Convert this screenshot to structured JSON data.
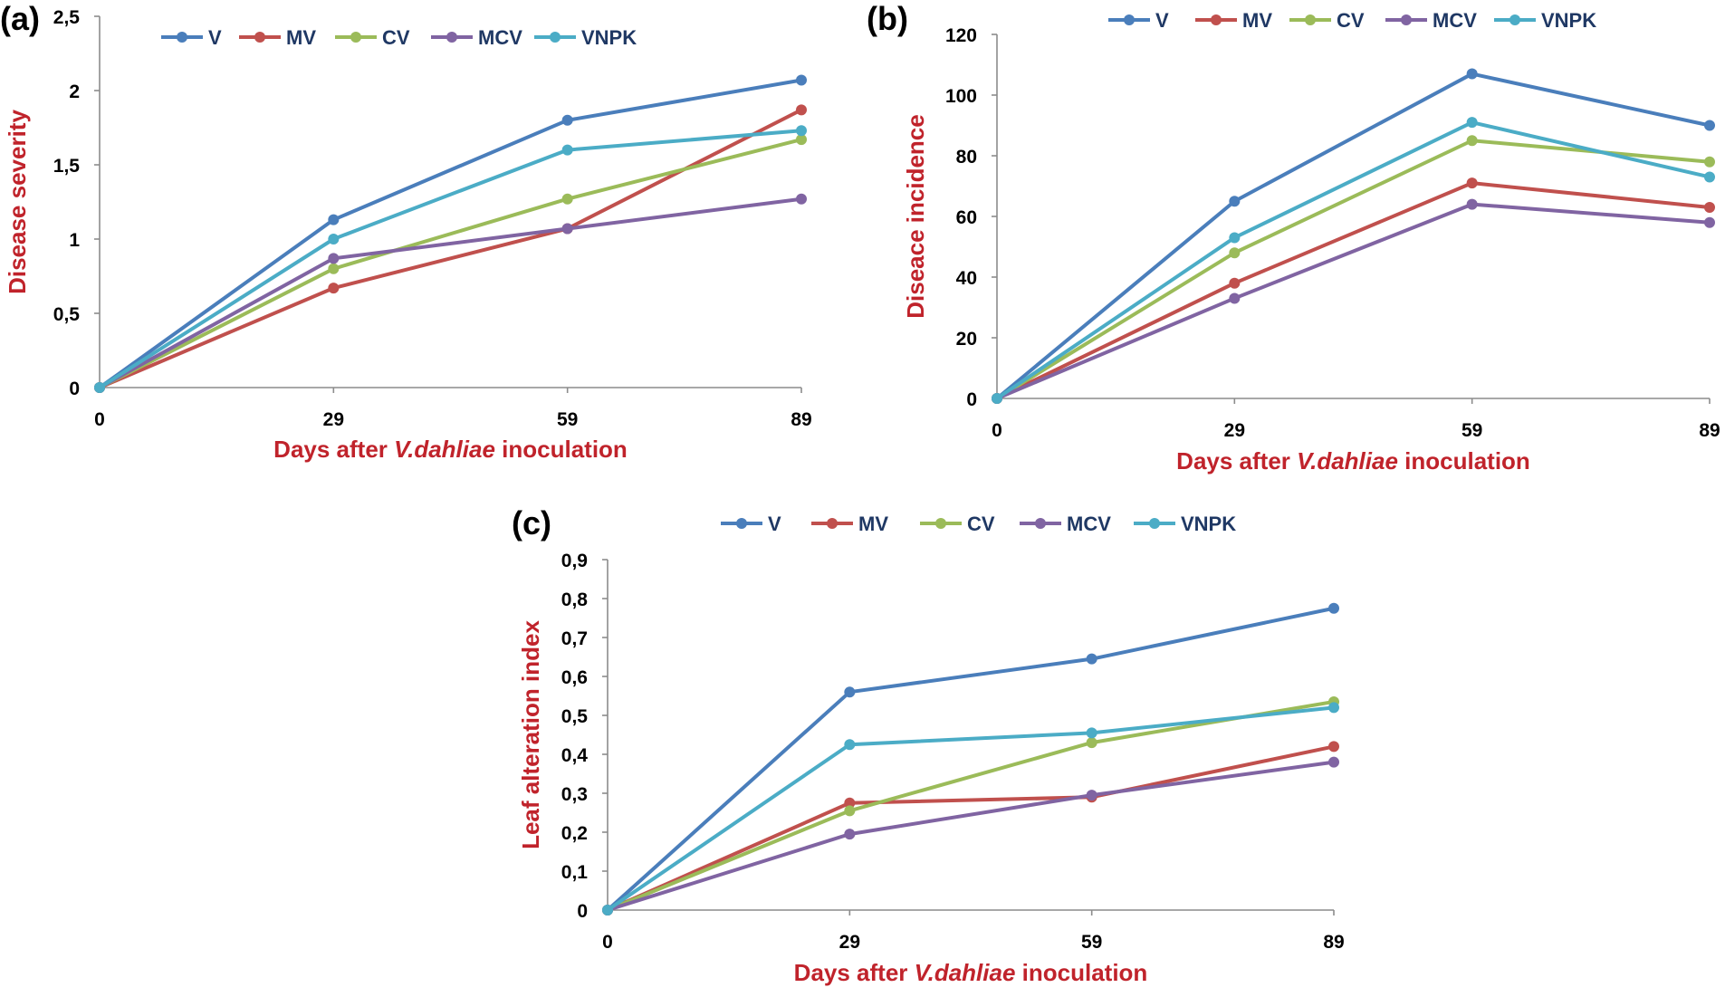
{
  "chart_data": [
    {
      "type": "line",
      "panel_label": "(a)",
      "categories": [
        "0",
        "29",
        "59",
        "89"
      ],
      "ylabel": "Disease severity",
      "xlabel": {
        "before": "Days after ",
        "italic": "V.dahliae",
        "after": " inoculation"
      },
      "ylim": [
        0,
        2.5
      ],
      "yticks": [
        "0",
        "0,5",
        "1",
        "1,5",
        "2",
        "2,5"
      ],
      "legend_position": "top",
      "grid": false,
      "series": [
        {
          "name": "V",
          "color": "#4a7ebb",
          "values": [
            0,
            1.13,
            1.8,
            2.07
          ]
        },
        {
          "name": "MV",
          "color": "#c0504d",
          "values": [
            0,
            0.67,
            1.07,
            1.87
          ]
        },
        {
          "name": "CV",
          "color": "#9bbb59",
          "values": [
            0,
            0.8,
            1.27,
            1.67
          ]
        },
        {
          "name": "MCV",
          "color": "#8064a2",
          "values": [
            0,
            0.87,
            1.07,
            1.27
          ]
        },
        {
          "name": "VNPK",
          "color": "#4bacc6",
          "values": [
            0,
            1.0,
            1.6,
            1.73
          ]
        }
      ]
    },
    {
      "type": "line",
      "panel_label": "(b)",
      "categories": [
        "0",
        "29",
        "59",
        "89"
      ],
      "ylabel": "Diseace incidence",
      "xlabel": {
        "before": "Days after ",
        "italic": "V.dahliae",
        "after": " inoculation"
      },
      "ylim": [
        0,
        120
      ],
      "yticks": [
        "0",
        "20",
        "40",
        "60",
        "80",
        "100",
        "120"
      ],
      "legend_position": "top",
      "grid": false,
      "series": [
        {
          "name": "V",
          "color": "#4a7ebb",
          "values": [
            0,
            65,
            107,
            90
          ]
        },
        {
          "name": "MV",
          "color": "#c0504d",
          "values": [
            0,
            38,
            71,
            63
          ]
        },
        {
          "name": "CV",
          "color": "#9bbb59",
          "values": [
            0,
            48,
            85,
            78
          ]
        },
        {
          "name": "MCV",
          "color": "#8064a2",
          "values": [
            0,
            33,
            64,
            58
          ]
        },
        {
          "name": "VNPK",
          "color": "#4bacc6",
          "values": [
            0,
            53,
            91,
            73
          ]
        }
      ]
    },
    {
      "type": "line",
      "panel_label": "(c)",
      "categories": [
        "0",
        "29",
        "59",
        "89"
      ],
      "ylabel": "Leaf alteration index",
      "xlabel": {
        "before": "Days after ",
        "italic": "V.dahliae",
        "after": " inoculation"
      },
      "ylim": [
        0,
        0.9
      ],
      "yticks": [
        "0",
        "0,1",
        "0,2",
        "0,3",
        "0,4",
        "0,5",
        "0,6",
        "0,7",
        "0,8",
        "0,9"
      ],
      "legend_position": "top",
      "grid": false,
      "series": [
        {
          "name": "V",
          "color": "#4a7ebb",
          "values": [
            0,
            0.56,
            0.645,
            0.775
          ]
        },
        {
          "name": "MV",
          "color": "#c0504d",
          "values": [
            0,
            0.275,
            0.29,
            0.42
          ]
        },
        {
          "name": "CV",
          "color": "#9bbb59",
          "values": [
            0,
            0.255,
            0.43,
            0.535
          ]
        },
        {
          "name": "MCV",
          "color": "#8064a2",
          "values": [
            0,
            0.195,
            0.295,
            0.38
          ]
        },
        {
          "name": "VNPK",
          "color": "#4bacc6",
          "values": [
            0,
            0.425,
            0.455,
            0.52
          ]
        }
      ]
    }
  ]
}
